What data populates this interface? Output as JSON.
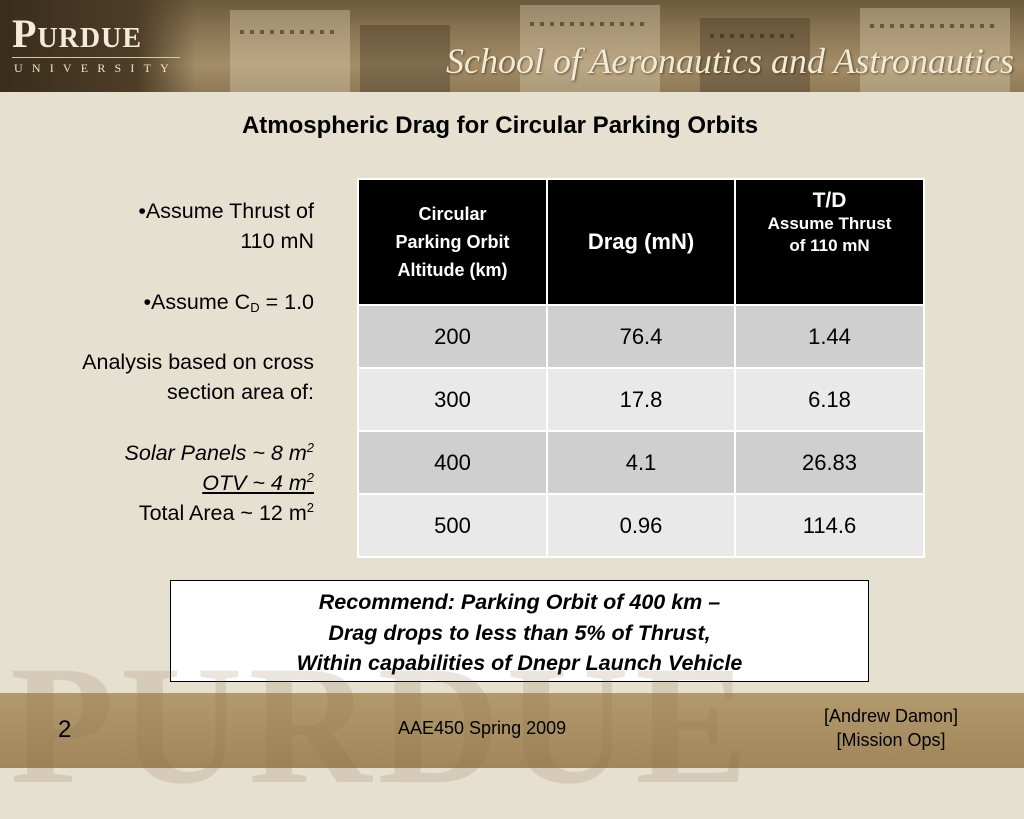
{
  "header": {
    "logo_word_main": "Purdue",
    "logo_sub": "UNIVERSITY",
    "school": "School of Aeronautics and Astronautics"
  },
  "slide": {
    "title": "Atmospheric Drag for Circular Parking Orbits",
    "notes": {
      "thrust_line1": "•Assume Thrust of",
      "thrust_line2": "110 mN",
      "cd_prefix": "•Assume C",
      "cd_sub": "D",
      "cd_suffix": " = 1.0",
      "analysis_line1": "Analysis based on cross",
      "analysis_line2": "section area of:",
      "solar": "Solar Panels ~ 8 m",
      "otv": "OTV ~ 4 m",
      "total": "Total Area ~ 12 m",
      "exp": "2"
    },
    "table": {
      "headers": {
        "altitude_l1": "Circular",
        "altitude_l2": "Parking Orbit",
        "altitude_l3": "Altitude (km)",
        "drag": "Drag (mN)",
        "td": "T/D",
        "td_sub_l1": "Assume Thrust",
        "td_sub_l2": "of 110 mN"
      },
      "rows": [
        {
          "altitude": "200",
          "drag": "76.4",
          "td": "1.44"
        },
        {
          "altitude": "300",
          "drag": "17.8",
          "td": "6.18"
        },
        {
          "altitude": "400",
          "drag": "4.1",
          "td": "26.83"
        },
        {
          "altitude": "500",
          "drag": "0.96",
          "td": "114.6"
        }
      ]
    },
    "recommend": {
      "line1": "Recommend: Parking Orbit of 400 km –",
      "line2": "Drag drops to less than 5% of Thrust,",
      "line3": "Within capabilities of Dnepr Launch Vehicle"
    }
  },
  "footer": {
    "page_number": "2",
    "course": "AAE450 Spring 2009",
    "author": "[Andrew Damon]",
    "role": "[Mission Ops]"
  },
  "colors": {
    "banner_brown": "#8b7654",
    "table_header": "#000000",
    "row_dark": "#cfcfcf",
    "row_light": "#e9e9e9",
    "background": "#e6e0d1"
  }
}
